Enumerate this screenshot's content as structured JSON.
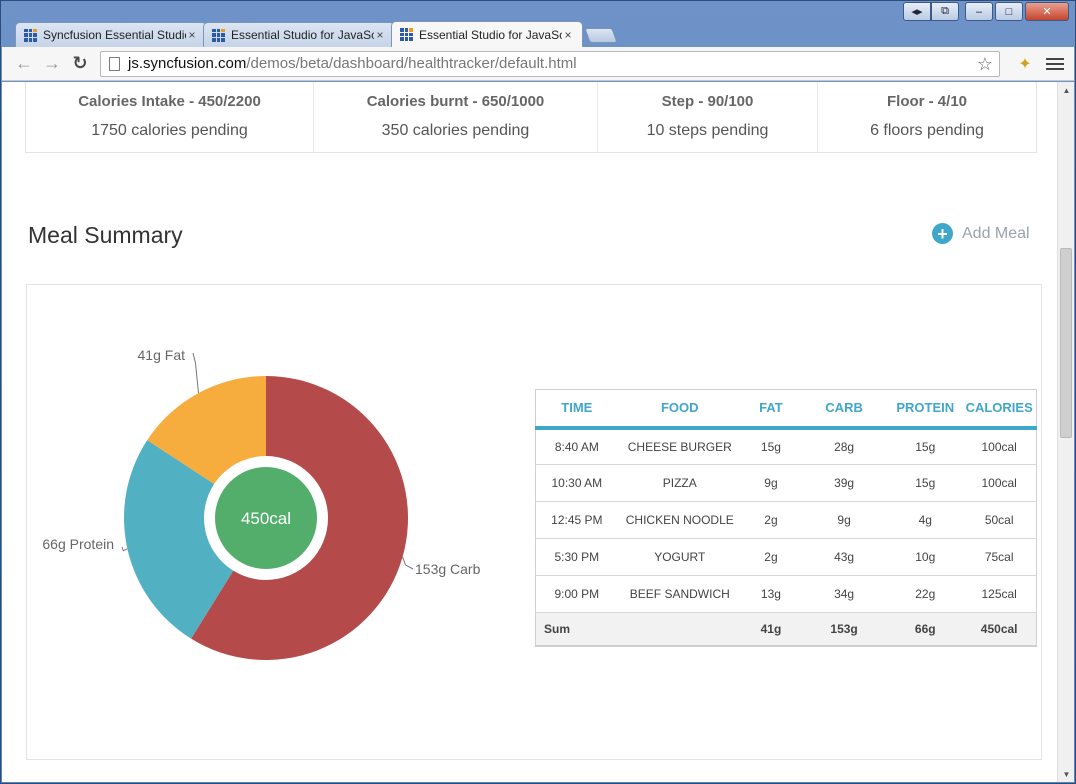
{
  "browser": {
    "tabs": [
      {
        "title": "Syncfusion Essential Studio",
        "active": false
      },
      {
        "title": "Essential Studio for JavaScript",
        "active": false
      },
      {
        "title": "Essential Studio for JavaScript",
        "active": true
      }
    ],
    "url_host": "js.syncfusion.com",
    "url_path": "/demos/beta/dashboard/healthtracker/default.html",
    "close_glyph": "×"
  },
  "stats": [
    {
      "title": "Calories Intake - 450/2200",
      "subtitle": "1750 calories pending"
    },
    {
      "title": "Calories burnt - 650/1000",
      "subtitle": "350 calories pending"
    },
    {
      "title": "Step - 90/100",
      "subtitle": "10 steps pending"
    },
    {
      "title": "Floor - 4/10",
      "subtitle": "6 floors pending"
    }
  ],
  "meal_summary": {
    "title": "Meal Summary",
    "add_meal_label": "Add Meal",
    "add_icon_glyph": "+"
  },
  "chart_data": {
    "type": "pie",
    "center_label": "450cal",
    "categories": [
      "Carb",
      "Protein",
      "Fat"
    ],
    "values": [
      153,
      66,
      41
    ],
    "labels": [
      "153g Carb",
      "66g Protein",
      "41g Fat"
    ],
    "colors": [
      "#b54a4b",
      "#52b0c3",
      "#f6ad3e"
    ],
    "center_color": "#53ad6b"
  },
  "table": {
    "headers": [
      "TIME",
      "FOOD",
      "FAT",
      "CARB",
      "PROTEIN",
      "CALORIES"
    ],
    "rows": [
      [
        "8:40 AM",
        "CHEESE BURGER",
        "15g",
        "28g",
        "15g",
        "100cal"
      ],
      [
        "10:30 AM",
        "PIZZA",
        "9g",
        "39g",
        "15g",
        "100cal"
      ],
      [
        "12:45 PM",
        "CHICKEN NOODLE",
        "2g",
        "9g",
        "4g",
        "50cal"
      ],
      [
        "5:30 PM",
        "YOGURT",
        "2g",
        "43g",
        "10g",
        "75cal"
      ],
      [
        "9:00 PM",
        "BEEF SANDWICH",
        "13g",
        "34g",
        "22g",
        "125cal"
      ]
    ],
    "sum": [
      "Sum",
      "",
      "41g",
      "153g",
      "66g",
      "450cal"
    ]
  },
  "colors": {
    "accent": "#3fa7c9"
  }
}
